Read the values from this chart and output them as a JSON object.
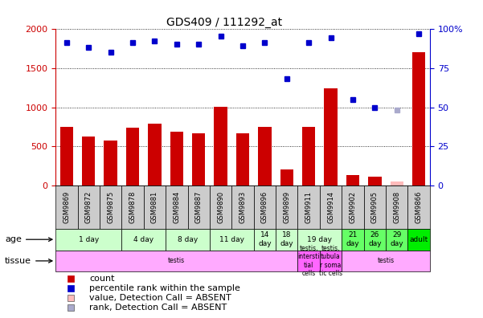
{
  "title": "GDS409 / 111292_at",
  "samples": [
    "GSM9869",
    "GSM9872",
    "GSM9875",
    "GSM9878",
    "GSM9881",
    "GSM9884",
    "GSM9887",
    "GSM9890",
    "GSM9893",
    "GSM9896",
    "GSM9899",
    "GSM9911",
    "GSM9914",
    "GSM9902",
    "GSM9905",
    "GSM9908",
    "GSM9866"
  ],
  "counts": [
    750,
    630,
    575,
    740,
    790,
    690,
    670,
    1005,
    665,
    755,
    210,
    750,
    1245,
    135,
    120,
    55,
    1700
  ],
  "percentile_ranks": [
    91,
    88,
    85,
    91,
    92,
    90,
    90,
    95,
    89,
    91,
    68,
    91,
    94,
    55,
    50,
    48,
    97
  ],
  "absent_value_indices": [
    15
  ],
  "absent_rank_indices": [
    15
  ],
  "age_groups": [
    {
      "label": "1 day",
      "start": 0,
      "end": 3,
      "color": "#ccffcc"
    },
    {
      "label": "4 day",
      "start": 3,
      "end": 5,
      "color": "#ccffcc"
    },
    {
      "label": "8 day",
      "start": 5,
      "end": 7,
      "color": "#ccffcc"
    },
    {
      "label": "11 day",
      "start": 7,
      "end": 9,
      "color": "#ccffcc"
    },
    {
      "label": "14\nday",
      "start": 9,
      "end": 10,
      "color": "#ccffcc"
    },
    {
      "label": "18\nday",
      "start": 10,
      "end": 11,
      "color": "#ccffcc"
    },
    {
      "label": "19 day",
      "start": 11,
      "end": 13,
      "color": "#ccffcc"
    },
    {
      "label": "21\nday",
      "start": 13,
      "end": 14,
      "color": "#66ff66"
    },
    {
      "label": "26\nday",
      "start": 14,
      "end": 15,
      "color": "#66ff66"
    },
    {
      "label": "29\nday",
      "start": 15,
      "end": 16,
      "color": "#66ff66"
    },
    {
      "label": "adult",
      "start": 16,
      "end": 17,
      "color": "#00ee00"
    }
  ],
  "tissue_groups": [
    {
      "label": "testis",
      "start": 0,
      "end": 11,
      "color": "#ffaaff"
    },
    {
      "label": "testis,\nintersti\ntial\ncells",
      "start": 11,
      "end": 12,
      "color": "#ff66ff"
    },
    {
      "label": "testis,\ntubula\nr soma\ntic cells",
      "start": 12,
      "end": 13,
      "color": "#ff66ff"
    },
    {
      "label": "testis",
      "start": 13,
      "end": 17,
      "color": "#ffaaff"
    }
  ],
  "bar_color": "#cc0000",
  "dot_color": "#0000cc",
  "absent_bar_color": "#ffbbbb",
  "absent_dot_color": "#aaaacc",
  "ylim_left": [
    0,
    2000
  ],
  "ylim_right": [
    0,
    100
  ],
  "yticks_left": [
    0,
    500,
    1000,
    1500,
    2000
  ],
  "yticks_right": [
    0,
    25,
    50,
    75,
    100
  ],
  "bg_color": "#ffffff",
  "xticklabel_bg": "#dddddd",
  "legend_items": [
    {
      "color": "#cc0000",
      "label": "count"
    },
    {
      "color": "#0000cc",
      "label": "percentile rank within the sample"
    },
    {
      "color": "#ffbbbb",
      "label": "value, Detection Call = ABSENT"
    },
    {
      "color": "#aaaacc",
      "label": "rank, Detection Call = ABSENT"
    }
  ]
}
